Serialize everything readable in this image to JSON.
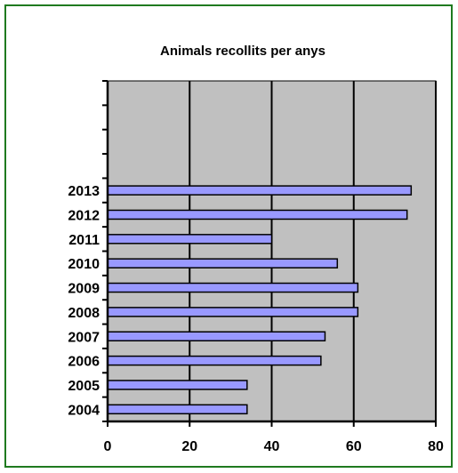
{
  "chart_data": {
    "type": "bar",
    "orientation": "horizontal",
    "title": "Animals recollits per anys",
    "xlabel": "",
    "ylabel": "",
    "categories": [
      "2004",
      "2005",
      "2006",
      "2007",
      "2008",
      "2009",
      "2010",
      "2011",
      "2012",
      "2013"
    ],
    "values": [
      34,
      34,
      52,
      53,
      61,
      61,
      56,
      40,
      73,
      74
    ],
    "xlim": [
      0,
      80
    ],
    "x_ticks": [
      0,
      20,
      40,
      60,
      80
    ],
    "empty_category_slots_above": 4,
    "grid": true,
    "legend": "none",
    "colors": {
      "border": "#1f7a1f",
      "plot_background": "#c0c0c0",
      "bar_fill": "#9999ff",
      "bar_stroke": "#000000",
      "gridline": "#000000"
    }
  }
}
